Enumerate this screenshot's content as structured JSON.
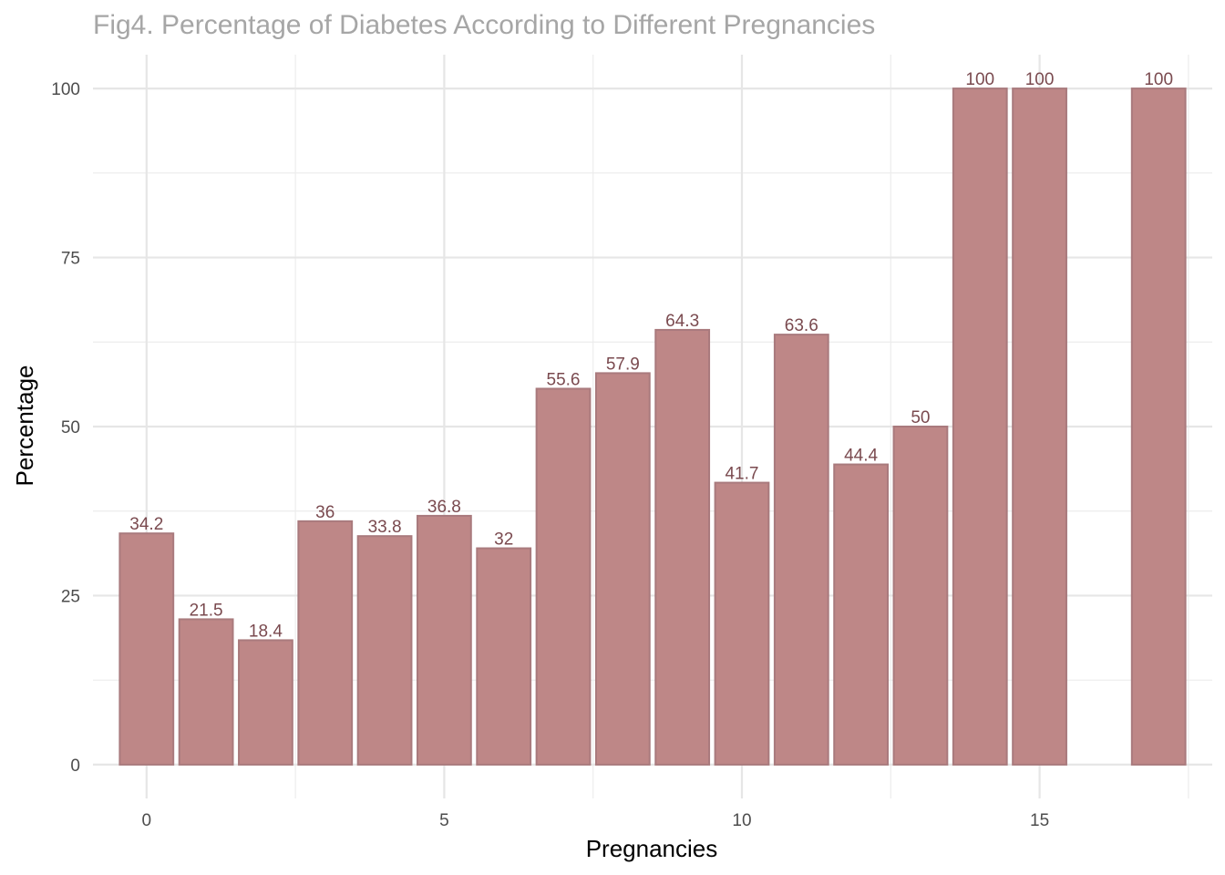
{
  "chart_data": {
    "type": "bar",
    "title": "Fig4. Percentage of Diabetes According to Different Pregnancies",
    "xlabel": "Pregnancies",
    "ylabel": "Percentage",
    "x": [
      0,
      1,
      2,
      3,
      4,
      5,
      6,
      7,
      8,
      9,
      10,
      11,
      12,
      13,
      14,
      15,
      17
    ],
    "values": [
      34.2,
      21.5,
      18.4,
      36,
      33.8,
      36.8,
      32,
      55.6,
      57.9,
      64.3,
      41.7,
      63.6,
      44.4,
      50,
      100,
      100,
      100
    ],
    "data_labels": [
      "34.2",
      "21.5",
      "18.4",
      "36",
      "33.8",
      "36.8",
      "32",
      "55.6",
      "57.9",
      "64.3",
      "41.7",
      "63.6",
      "44.4",
      "50",
      "100",
      "100",
      "100"
    ],
    "xlim": [
      -0.9,
      17.9
    ],
    "ylim": [
      -5,
      105
    ],
    "x_ticks": [
      0,
      5,
      10,
      15
    ],
    "x_tick_labels": [
      "0",
      "5",
      "10",
      "15"
    ],
    "y_ticks": [
      0,
      25,
      50,
      75,
      100
    ],
    "y_tick_labels": [
      "0",
      "25",
      "50",
      "75",
      "100"
    ],
    "grid": true,
    "bar_color": "#be8787",
    "label_color": "#7a4a4f"
  }
}
